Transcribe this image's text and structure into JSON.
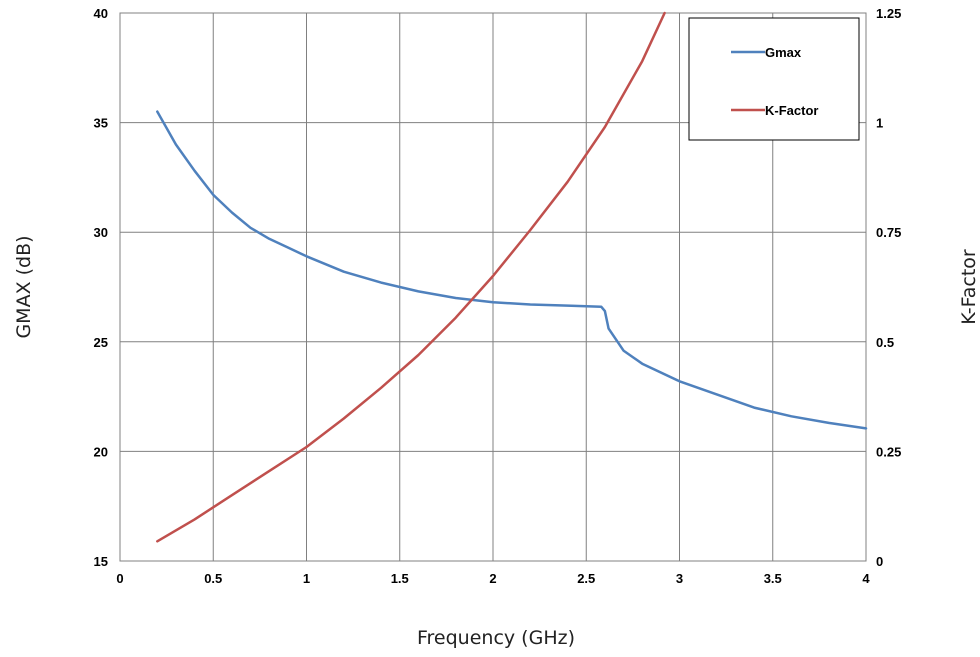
{
  "chart_data": {
    "type": "line",
    "title": "",
    "xlabel": "Frequency (GHz)",
    "ylabel": "GMAX (dB)",
    "y2label": "K-Factor",
    "xlim": [
      0,
      4
    ],
    "ylim": [
      15,
      40
    ],
    "y2lim": [
      0,
      1.25
    ],
    "xticks": [
      "0",
      "0.5",
      "1",
      "1.5",
      "2",
      "2.5",
      "3",
      "3.5",
      "4"
    ],
    "yticks": [
      "15",
      "20",
      "25",
      "30",
      "35",
      "40"
    ],
    "y2ticks": [
      "0",
      "0.25",
      "0.5",
      "0.75",
      "1",
      "1.25"
    ],
    "grid": true,
    "legend": "top-right",
    "series": [
      {
        "name": "Gmax",
        "axis": "left",
        "color": "#4f81bd",
        "x": [
          0.2,
          0.3,
          0.4,
          0.5,
          0.6,
          0.7,
          0.8,
          0.9,
          1.0,
          1.2,
          1.4,
          1.6,
          1.8,
          2.0,
          2.2,
          2.4,
          2.58,
          2.6,
          2.62,
          2.7,
          2.8,
          3.0,
          3.2,
          3.4,
          3.6,
          3.8,
          4.0
        ],
        "values": [
          35.5,
          34.0,
          32.8,
          31.7,
          30.9,
          30.2,
          29.7,
          29.3,
          28.9,
          28.2,
          27.7,
          27.3,
          27.0,
          26.8,
          26.7,
          26.65,
          26.6,
          26.4,
          25.6,
          24.6,
          24.0,
          23.2,
          22.6,
          22.0,
          21.6,
          21.3,
          21.05
        ]
      },
      {
        "name": "K-Factor",
        "axis": "right",
        "color": "#c0504d",
        "x": [
          0.2,
          0.4,
          0.6,
          0.8,
          1.0,
          1.2,
          1.4,
          1.6,
          1.8,
          2.0,
          2.2,
          2.4,
          2.6,
          2.8,
          2.92
        ],
        "values": [
          0.045,
          0.095,
          0.15,
          0.205,
          0.26,
          0.325,
          0.395,
          0.47,
          0.555,
          0.65,
          0.755,
          0.865,
          0.99,
          1.14,
          1.25
        ]
      }
    ]
  }
}
